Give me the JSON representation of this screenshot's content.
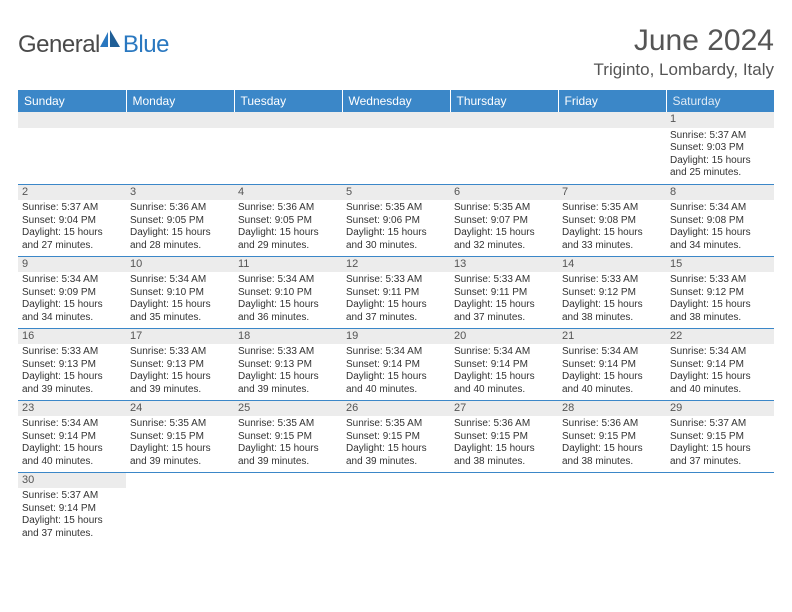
{
  "logo": {
    "text1": "General",
    "text2": "Blue"
  },
  "title": "June 2024",
  "location": "Triginto, Lombardy, Italy",
  "colors": {
    "header_bg": "#3b87c8",
    "header_text": "#ffffff",
    "daynum_bg": "#ececec",
    "cell_border": "#3b87c8",
    "logo_gray": "#4a4a4a",
    "logo_blue": "#2a78c0"
  },
  "weekdays": [
    "Sunday",
    "Monday",
    "Tuesday",
    "Wednesday",
    "Thursday",
    "Friday",
    "Saturday"
  ],
  "lead_blanks": 6,
  "days": [
    {
      "n": 1,
      "sr": "5:37 AM",
      "ss": "9:03 PM",
      "dl": "15 hours and 25 minutes."
    },
    {
      "n": 2,
      "sr": "5:37 AM",
      "ss": "9:04 PM",
      "dl": "15 hours and 27 minutes."
    },
    {
      "n": 3,
      "sr": "5:36 AM",
      "ss": "9:05 PM",
      "dl": "15 hours and 28 minutes."
    },
    {
      "n": 4,
      "sr": "5:36 AM",
      "ss": "9:05 PM",
      "dl": "15 hours and 29 minutes."
    },
    {
      "n": 5,
      "sr": "5:35 AM",
      "ss": "9:06 PM",
      "dl": "15 hours and 30 minutes."
    },
    {
      "n": 6,
      "sr": "5:35 AM",
      "ss": "9:07 PM",
      "dl": "15 hours and 32 minutes."
    },
    {
      "n": 7,
      "sr": "5:35 AM",
      "ss": "9:08 PM",
      "dl": "15 hours and 33 minutes."
    },
    {
      "n": 8,
      "sr": "5:34 AM",
      "ss": "9:08 PM",
      "dl": "15 hours and 34 minutes."
    },
    {
      "n": 9,
      "sr": "5:34 AM",
      "ss": "9:09 PM",
      "dl": "15 hours and 34 minutes."
    },
    {
      "n": 10,
      "sr": "5:34 AM",
      "ss": "9:10 PM",
      "dl": "15 hours and 35 minutes."
    },
    {
      "n": 11,
      "sr": "5:34 AM",
      "ss": "9:10 PM",
      "dl": "15 hours and 36 minutes."
    },
    {
      "n": 12,
      "sr": "5:33 AM",
      "ss": "9:11 PM",
      "dl": "15 hours and 37 minutes."
    },
    {
      "n": 13,
      "sr": "5:33 AM",
      "ss": "9:11 PM",
      "dl": "15 hours and 37 minutes."
    },
    {
      "n": 14,
      "sr": "5:33 AM",
      "ss": "9:12 PM",
      "dl": "15 hours and 38 minutes."
    },
    {
      "n": 15,
      "sr": "5:33 AM",
      "ss": "9:12 PM",
      "dl": "15 hours and 38 minutes."
    },
    {
      "n": 16,
      "sr": "5:33 AM",
      "ss": "9:13 PM",
      "dl": "15 hours and 39 minutes."
    },
    {
      "n": 17,
      "sr": "5:33 AM",
      "ss": "9:13 PM",
      "dl": "15 hours and 39 minutes."
    },
    {
      "n": 18,
      "sr": "5:33 AM",
      "ss": "9:13 PM",
      "dl": "15 hours and 39 minutes."
    },
    {
      "n": 19,
      "sr": "5:34 AM",
      "ss": "9:14 PM",
      "dl": "15 hours and 40 minutes."
    },
    {
      "n": 20,
      "sr": "5:34 AM",
      "ss": "9:14 PM",
      "dl": "15 hours and 40 minutes."
    },
    {
      "n": 21,
      "sr": "5:34 AM",
      "ss": "9:14 PM",
      "dl": "15 hours and 40 minutes."
    },
    {
      "n": 22,
      "sr": "5:34 AM",
      "ss": "9:14 PM",
      "dl": "15 hours and 40 minutes."
    },
    {
      "n": 23,
      "sr": "5:34 AM",
      "ss": "9:14 PM",
      "dl": "15 hours and 40 minutes."
    },
    {
      "n": 24,
      "sr": "5:35 AM",
      "ss": "9:15 PM",
      "dl": "15 hours and 39 minutes."
    },
    {
      "n": 25,
      "sr": "5:35 AM",
      "ss": "9:15 PM",
      "dl": "15 hours and 39 minutes."
    },
    {
      "n": 26,
      "sr": "5:35 AM",
      "ss": "9:15 PM",
      "dl": "15 hours and 39 minutes."
    },
    {
      "n": 27,
      "sr": "5:36 AM",
      "ss": "9:15 PM",
      "dl": "15 hours and 38 minutes."
    },
    {
      "n": 28,
      "sr": "5:36 AM",
      "ss": "9:15 PM",
      "dl": "15 hours and 38 minutes."
    },
    {
      "n": 29,
      "sr": "5:37 AM",
      "ss": "9:15 PM",
      "dl": "15 hours and 37 minutes."
    },
    {
      "n": 30,
      "sr": "5:37 AM",
      "ss": "9:14 PM",
      "dl": "15 hours and 37 minutes."
    }
  ],
  "labels": {
    "sunrise": "Sunrise:",
    "sunset": "Sunset:",
    "daylight": "Daylight:"
  }
}
